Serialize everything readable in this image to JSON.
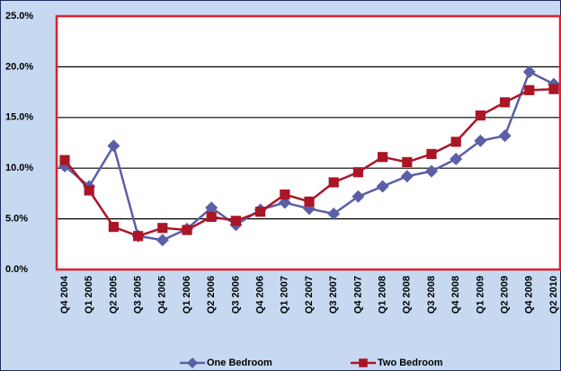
{
  "chart_data": {
    "type": "line",
    "categories": [
      "Q4 2004",
      "Q1 2005",
      "Q2 2005",
      "Q3 2005",
      "Q4 2005",
      "Q1 2006",
      "Q2 2006",
      "Q3 2006",
      "Q4 2006",
      "Q1 2007",
      "Q2 2007",
      "Q3 2007",
      "Q4 2007",
      "Q1 2008",
      "Q2 2008",
      "Q3 2008",
      "Q4 2008",
      "Q1 2009",
      "Q2 2009",
      "Q4 2009",
      "Q2 2010"
    ],
    "series": [
      {
        "name": "One Bedroom",
        "color": "#5a5fa6",
        "marker": "diamond",
        "values": [
          10.2,
          8.2,
          12.2,
          3.3,
          2.9,
          4.0,
          6.1,
          4.4,
          5.9,
          6.6,
          6.0,
          5.5,
          7.2,
          8.2,
          9.2,
          9.7,
          10.9,
          12.7,
          13.2,
          19.5,
          18.3
        ]
      },
      {
        "name": "Two Bedroom",
        "color": "#aa1626",
        "marker": "square",
        "values": [
          10.8,
          7.8,
          4.2,
          3.3,
          4.1,
          3.9,
          5.2,
          4.8,
          5.7,
          7.4,
          6.7,
          8.6,
          9.6,
          11.1,
          10.6,
          11.4,
          12.6,
          15.2,
          16.5,
          17.7,
          17.8
        ]
      }
    ],
    "ylim": [
      0,
      25
    ],
    "yticks": [
      {
        "value": 0,
        "label": "0.0%"
      },
      {
        "value": 5,
        "label": "5.0%"
      },
      {
        "value": 10,
        "label": "10.0%"
      },
      {
        "value": 15,
        "label": "15.0%"
      },
      {
        "value": 20,
        "label": "20.0%"
      },
      {
        "value": 25,
        "label": "25.0%"
      }
    ],
    "grid": true,
    "legend": "bottom"
  }
}
